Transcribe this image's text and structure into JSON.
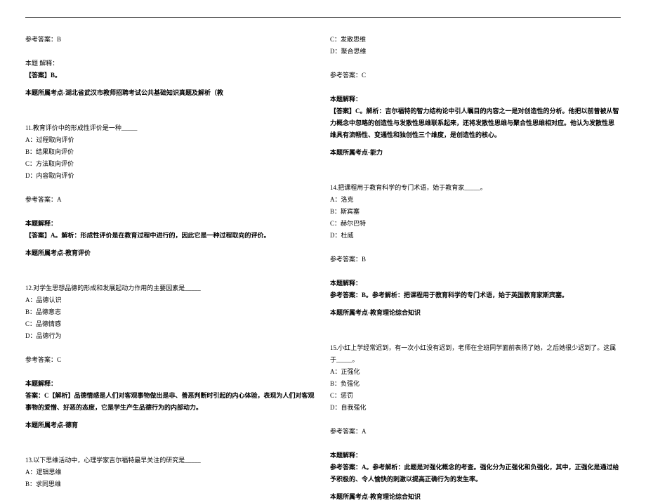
{
  "left": {
    "ans_b": "参考答案：B",
    "explain_title": "本题 解释：",
    "explain_b": "【答案】B。",
    "topic_wuhan": "本题所属考点-湖北省武汉市教师招聘考试公共基础知识真题及解析（教",
    "q11_stem": "11.教育评价中的形成性评价是一种_____",
    "q11_a": "A：过程取向评价",
    "q11_b": "B：结果取向评价",
    "q11_c": "C：方法取向评价",
    "q11_d": "D：内容取向评价",
    "q11_ans": "参考答案：A",
    "q11_expl_title": "本题解释：",
    "q11_expl": "【答案】A。解析：形成性评价是在教育过程中进行的，因此它是一种过程取向的评价。",
    "q11_topic": "本题所属考点-教育评价",
    "q12_stem": "12.对学生思想品德的形成和发展起动力作用的主要因素是_____",
    "q12_a": "A：品德认识",
    "q12_b": "B：品德意志",
    "q12_c": "C：品德情感",
    "q12_d": "D：品德行为",
    "q12_ans": "参考答案：C",
    "q12_expl_title": "本题解释：",
    "q12_expl": "答案：C【解析】品德情感是人们对客观事物做出是非、善恶判断时引起的内心体验，表现为人们对客观事物的爱憎、好恶的态度，它是学生产生品德行为的内部动力。",
    "q12_topic": "本题所属考点-德育",
    "q13_stem": "13.以下思维活动中，心理学家吉尔福特最早关注的研究是_____",
    "q13_a": "A：逻辑思维",
    "q13_b": "B：求同思维"
  },
  "right": {
    "q13_c": "C：发散思维",
    "q13_d": "D：聚合思维",
    "q13_ans": "参考答案：C",
    "q13_expl_title": "本题解释：",
    "q13_expl": "【答案】C。解析：吉尔福特的智力结构论中引人瞩目的内容之一是对创造性的分析。他把以前曾被从智力概念中忽略的创造性与发散性思维联系起来，还将发散性思维与聚合性思维相对应。他认为发散性思维具有流畅性、变通性和独创性三个维度，是创造性的核心。",
    "q13_topic": "本题所属考点-能力",
    "q14_stem": "14.把课程用于教育科学的专门术语，始于教育家_____。",
    "q14_a": "A：洛克",
    "q14_b": "B：斯宾塞",
    "q14_c": "C：赫尔巴特",
    "q14_d": "D：杜威",
    "q14_ans": "参考答案：B",
    "q14_expl_title": "本题解释：",
    "q14_expl": "参考答案：B。参考解析：把课程用于教育科学的专门术语，始于英国教育家斯宾塞。",
    "q14_topic": "本题所属考点-教育理论综合知识",
    "q15_stem": "15.小红上学经常迟到，有一次小红没有迟到，老师在全班同学面前表扬了她，之后她很少迟到了。这属于_____。",
    "q15_a": "A：正强化",
    "q15_b": "B：负强化",
    "q15_c": "C：惩罚",
    "q15_d": "D：自我强化",
    "q15_ans": "参考答案：A",
    "q15_expl_title": "本题解释：",
    "q15_expl": "参考答案：A。参考解析：此题是对强化概念的考查。强化分为正强化和负强化，其中，正强化是通过给予积极的、令人愉快的刺激以提高正确行为的发生率。",
    "q15_topic": "本题所属考点-教育理论综合知识"
  }
}
